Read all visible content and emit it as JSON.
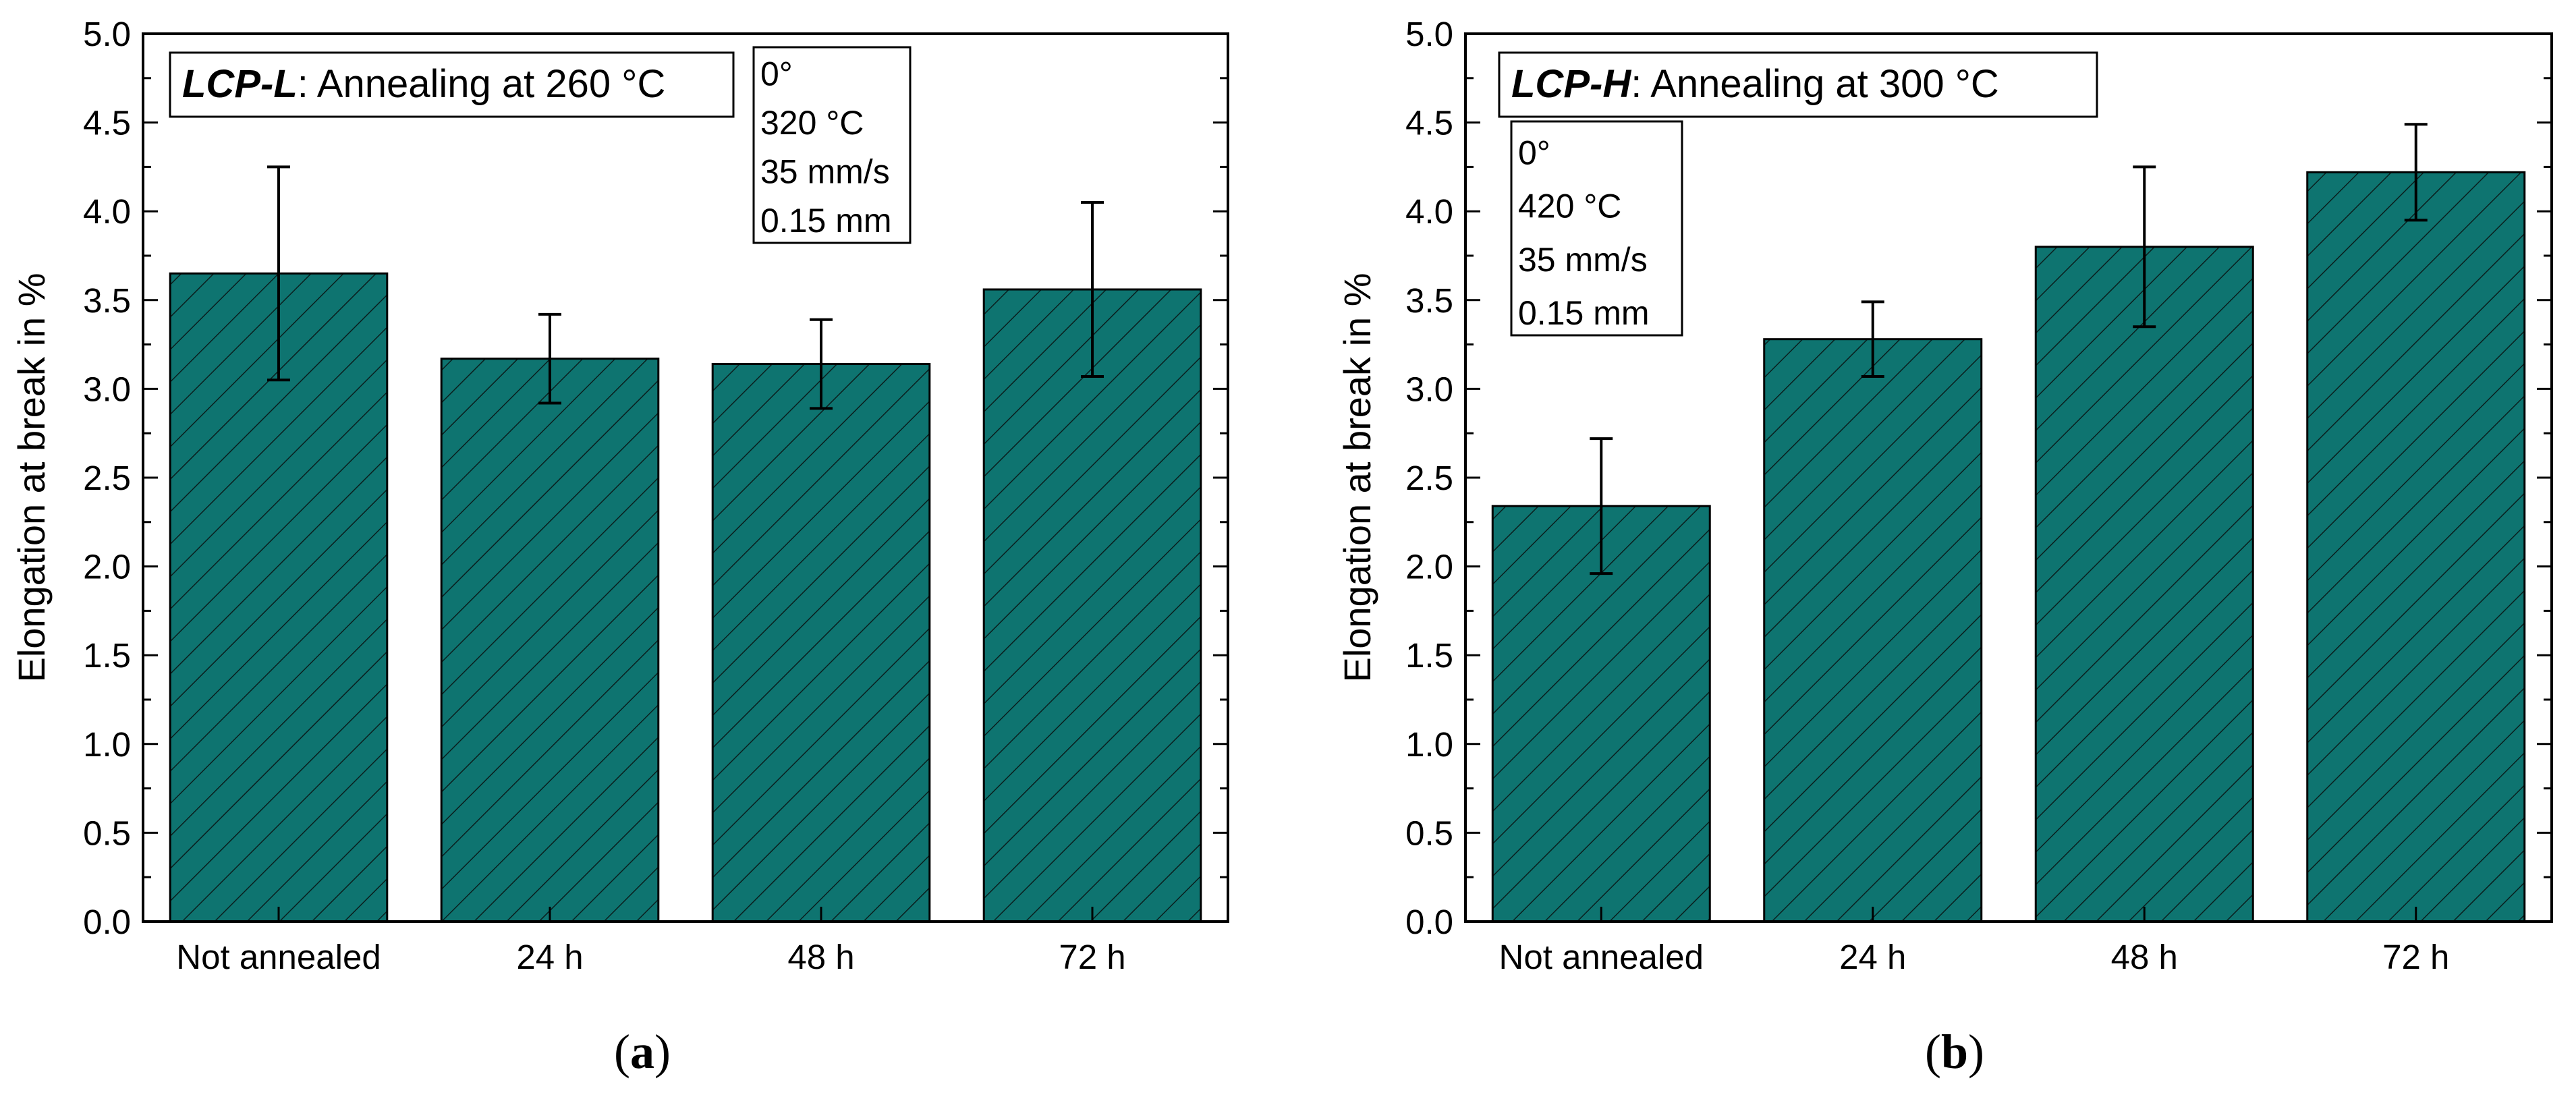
{
  "chart_data": [
    {
      "type": "bar",
      "title": "LCP-L: Annealing at 260 °C",
      "legend": {
        "material": "LCP-L",
        "rest": ": Annealing at 260 °C"
      },
      "info_box": [
        "0°",
        "320 °C",
        "35 mm/s",
        "0.15 mm"
      ],
      "caption": {
        "open": "(",
        "letter": "a",
        "close": ")"
      },
      "categories": [
        "Not annealed",
        "24 h",
        "48 h",
        "72 h"
      ],
      "values": [
        3.65,
        3.17,
        3.14,
        3.56
      ],
      "errors": [
        0.6,
        0.25,
        0.25,
        0.49
      ],
      "xlabel": "",
      "ylabel": "Elongation at break in %",
      "ylim": [
        0,
        5
      ],
      "yticks": [
        "0.0",
        "0.5",
        "1.0",
        "1.5",
        "2.0",
        "2.5",
        "3.0",
        "3.5",
        "4.0",
        "4.5",
        "5.0"
      ],
      "bar_color": "#0E7470",
      "hatch_color": "#0A1F1E"
    },
    {
      "type": "bar",
      "title": "LCP-H: Annealing at 300 °C",
      "legend": {
        "material": "LCP-H",
        "rest": ": Annealing at 300 °C"
      },
      "info_box": [
        "0°",
        "420 °C",
        "35 mm/s",
        "0.15 mm"
      ],
      "caption": {
        "open": "(",
        "letter": "b",
        "close": ")"
      },
      "categories": [
        "Not annealed",
        "24 h",
        "48 h",
        "72 h"
      ],
      "values": [
        2.34,
        3.28,
        3.8,
        4.22
      ],
      "errors": [
        0.38,
        0.21,
        0.45,
        0.27
      ],
      "xlabel": "",
      "ylabel": "Elongation at break in %",
      "ylim": [
        0,
        5
      ],
      "yticks": [
        "0.0",
        "0.5",
        "1.0",
        "1.5",
        "2.0",
        "2.5",
        "3.0",
        "3.5",
        "4.0",
        "4.5",
        "5.0"
      ],
      "bar_color": "#0E7470",
      "hatch_color": "#0A1F1E"
    }
  ]
}
